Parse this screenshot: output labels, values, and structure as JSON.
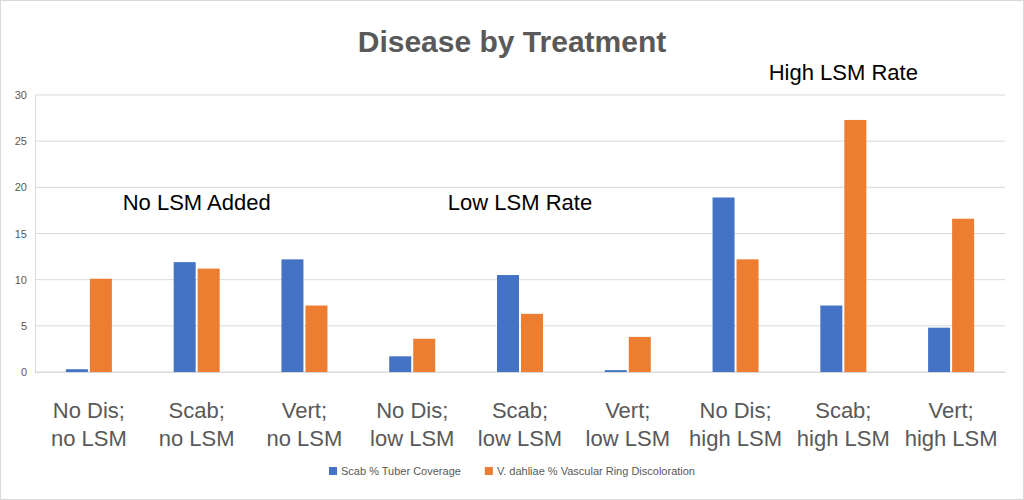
{
  "chart_data": {
    "type": "bar",
    "title": "Disease by Treatment",
    "categories": [
      "No Dis; no LSM",
      "Scab; no LSM",
      "Vert; no LSM",
      "No Dis; low LSM",
      "Scab; low LSM",
      "Vert; low LSM",
      "No Dis; high LSM",
      "Scab; high LSM",
      "Vert; high LSM"
    ],
    "series": [
      {
        "name": "Scab % Tuber Coverage",
        "color": "#4472c4",
        "values": [
          0.3,
          11.9,
          12.2,
          1.7,
          10.5,
          0.2,
          18.9,
          7.2,
          4.8
        ]
      },
      {
        "name": "V. dahliae % Vascular Ring Discoloration",
        "color": "#ed7d31",
        "values": [
          10.1,
          11.2,
          7.2,
          3.6,
          6.3,
          3.8,
          12.2,
          27.3,
          16.6
        ]
      }
    ],
    "annotations": [
      "No LSM Added",
      "Low LSM Rate",
      "High LSM Rate"
    ],
    "ylim": [
      0,
      30
    ],
    "yticks": [
      0,
      5,
      10,
      15,
      20,
      25,
      30
    ],
    "grid": true,
    "legend": "bottom"
  }
}
